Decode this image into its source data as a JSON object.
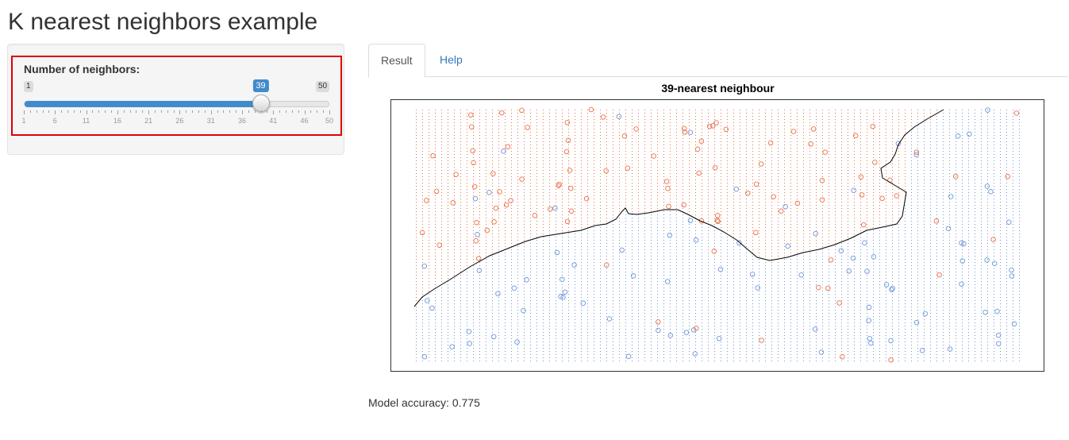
{
  "app": {
    "title": "K nearest neighbors example"
  },
  "slider": {
    "label": "Number of neighbors:",
    "min": 1,
    "max": 50,
    "value": 39,
    "min_label": "1",
    "max_label": "50",
    "value_label": "39",
    "tick_labels": [
      "1",
      "6",
      "11",
      "16",
      "21",
      "26",
      "31",
      "36",
      "41",
      "46",
      "50"
    ],
    "accent_color": "#428bca"
  },
  "tabs": [
    {
      "label": "Result",
      "active": true
    },
    {
      "label": "Help",
      "active": false
    }
  ],
  "plot": {
    "title": "39-nearest neighbour",
    "class_colors": {
      "class_a": "#e8734a",
      "class_b": "#6f97d8"
    },
    "boundary_color": "#000000"
  },
  "result": {
    "accuracy_text": "Model accuracy: 0.775"
  }
}
